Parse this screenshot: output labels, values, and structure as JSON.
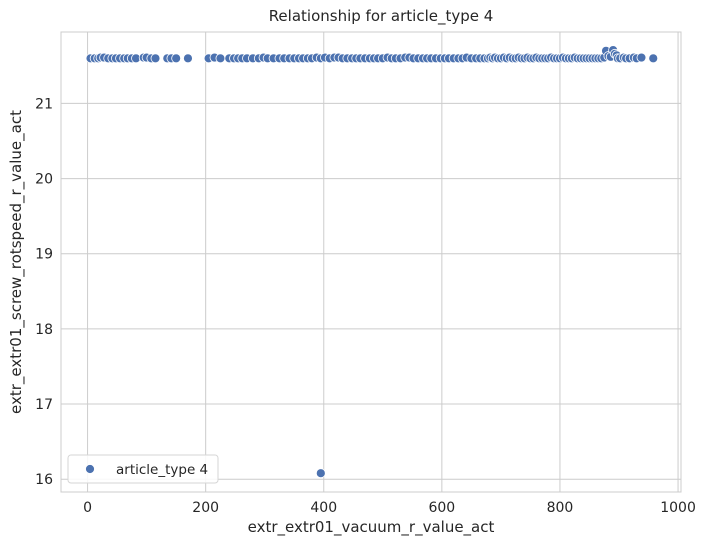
{
  "chart_data": {
    "type": "scatter",
    "title": "Relationship for article_type 4",
    "xlabel": "extr_extr01_vacuum_r_value_act",
    "ylabel": "extr_extr01_screw_rotspeed_r_value_act",
    "xlim": [
      -45,
      1005
    ],
    "ylim": [
      15.83,
      21.95
    ],
    "xticks": [
      0,
      200,
      400,
      600,
      800,
      1000
    ],
    "yticks": [
      16,
      17,
      18,
      19,
      20,
      21
    ],
    "grid": true,
    "legend_position": "bottom-left",
    "series": [
      {
        "name": "article_type 4",
        "color": "#4c72b0",
        "points": [
          [
            5,
            21.6
          ],
          [
            12,
            21.6
          ],
          [
            18,
            21.6
          ],
          [
            22,
            21.61
          ],
          [
            28,
            21.61
          ],
          [
            35,
            21.6
          ],
          [
            42,
            21.6
          ],
          [
            48,
            21.6
          ],
          [
            55,
            21.6
          ],
          [
            62,
            21.6
          ],
          [
            68,
            21.6
          ],
          [
            75,
            21.6
          ],
          [
            82,
            21.6
          ],
          [
            95,
            21.61
          ],
          [
            100,
            21.61
          ],
          [
            108,
            21.6
          ],
          [
            115,
            21.6
          ],
          [
            135,
            21.6
          ],
          [
            142,
            21.6
          ],
          [
            150,
            21.6
          ],
          [
            170,
            21.6
          ],
          [
            205,
            21.6
          ],
          [
            215,
            21.61
          ],
          [
            225,
            21.6
          ],
          [
            240,
            21.6
          ],
          [
            248,
            21.6
          ],
          [
            255,
            21.6
          ],
          [
            262,
            21.6
          ],
          [
            270,
            21.6
          ],
          [
            280,
            21.6
          ],
          [
            290,
            21.6
          ],
          [
            298,
            21.61
          ],
          [
            305,
            21.6
          ],
          [
            315,
            21.6
          ],
          [
            325,
            21.6
          ],
          [
            333,
            21.6
          ],
          [
            342,
            21.6
          ],
          [
            350,
            21.6
          ],
          [
            358,
            21.6
          ],
          [
            365,
            21.6
          ],
          [
            373,
            21.6
          ],
          [
            380,
            21.6
          ],
          [
            388,
            21.61
          ],
          [
            395,
            21.6
          ],
          [
            402,
            21.61
          ],
          [
            410,
            21.6
          ],
          [
            418,
            21.61
          ],
          [
            425,
            21.61
          ],
          [
            432,
            21.6
          ],
          [
            440,
            21.6
          ],
          [
            448,
            21.6
          ],
          [
            455,
            21.6
          ],
          [
            462,
            21.6
          ],
          [
            470,
            21.6
          ],
          [
            478,
            21.6
          ],
          [
            485,
            21.6
          ],
          [
            492,
            21.6
          ],
          [
            500,
            21.6
          ],
          [
            508,
            21.61
          ],
          [
            515,
            21.6
          ],
          [
            522,
            21.6
          ],
          [
            530,
            21.6
          ],
          [
            538,
            21.61
          ],
          [
            545,
            21.61
          ],
          [
            552,
            21.6
          ],
          [
            560,
            21.6
          ],
          [
            568,
            21.6
          ],
          [
            575,
            21.6
          ],
          [
            582,
            21.6
          ],
          [
            590,
            21.6
          ],
          [
            598,
            21.6
          ],
          [
            605,
            21.6
          ],
          [
            612,
            21.6
          ],
          [
            620,
            21.6
          ],
          [
            628,
            21.6
          ],
          [
            635,
            21.6
          ],
          [
            642,
            21.61
          ],
          [
            650,
            21.6
          ],
          [
            658,
            21.6
          ],
          [
            665,
            21.6
          ],
          [
            672,
            21.6
          ],
          [
            678,
            21.6
          ],
          [
            682,
            21.61
          ],
          [
            686,
            21.6
          ],
          [
            690,
            21.61
          ],
          [
            695,
            21.6
          ],
          [
            700,
            21.6
          ],
          [
            705,
            21.61
          ],
          [
            710,
            21.6
          ],
          [
            715,
            21.61
          ],
          [
            720,
            21.6
          ],
          [
            725,
            21.6
          ],
          [
            730,
            21.61
          ],
          [
            735,
            21.6
          ],
          [
            740,
            21.6
          ],
          [
            745,
            21.61
          ],
          [
            750,
            21.6
          ],
          [
            755,
            21.6
          ],
          [
            760,
            21.61
          ],
          [
            765,
            21.6
          ],
          [
            770,
            21.6
          ],
          [
            775,
            21.6
          ],
          [
            780,
            21.6
          ],
          [
            785,
            21.61
          ],
          [
            790,
            21.6
          ],
          [
            795,
            21.6
          ],
          [
            800,
            21.6
          ],
          [
            805,
            21.61
          ],
          [
            810,
            21.6
          ],
          [
            815,
            21.6
          ],
          [
            820,
            21.6
          ],
          [
            825,
            21.61
          ],
          [
            830,
            21.6
          ],
          [
            835,
            21.6
          ],
          [
            840,
            21.6
          ],
          [
            845,
            21.6
          ],
          [
            850,
            21.6
          ],
          [
            855,
            21.6
          ],
          [
            860,
            21.6
          ],
          [
            865,
            21.6
          ],
          [
            870,
            21.6
          ],
          [
            875,
            21.61
          ],
          [
            878,
            21.7
          ],
          [
            882,
            21.63
          ],
          [
            886,
            21.62
          ],
          [
            890,
            21.71
          ],
          [
            893,
            21.66
          ],
          [
            896,
            21.64
          ],
          [
            898,
            21.6
          ],
          [
            902,
            21.6
          ],
          [
            908,
            21.61
          ],
          [
            912,
            21.6
          ],
          [
            918,
            21.6
          ],
          [
            925,
            21.61
          ],
          [
            930,
            21.6
          ],
          [
            938,
            21.61
          ],
          [
            958,
            21.6
          ],
          [
            395,
            16.08
          ]
        ]
      }
    ]
  }
}
